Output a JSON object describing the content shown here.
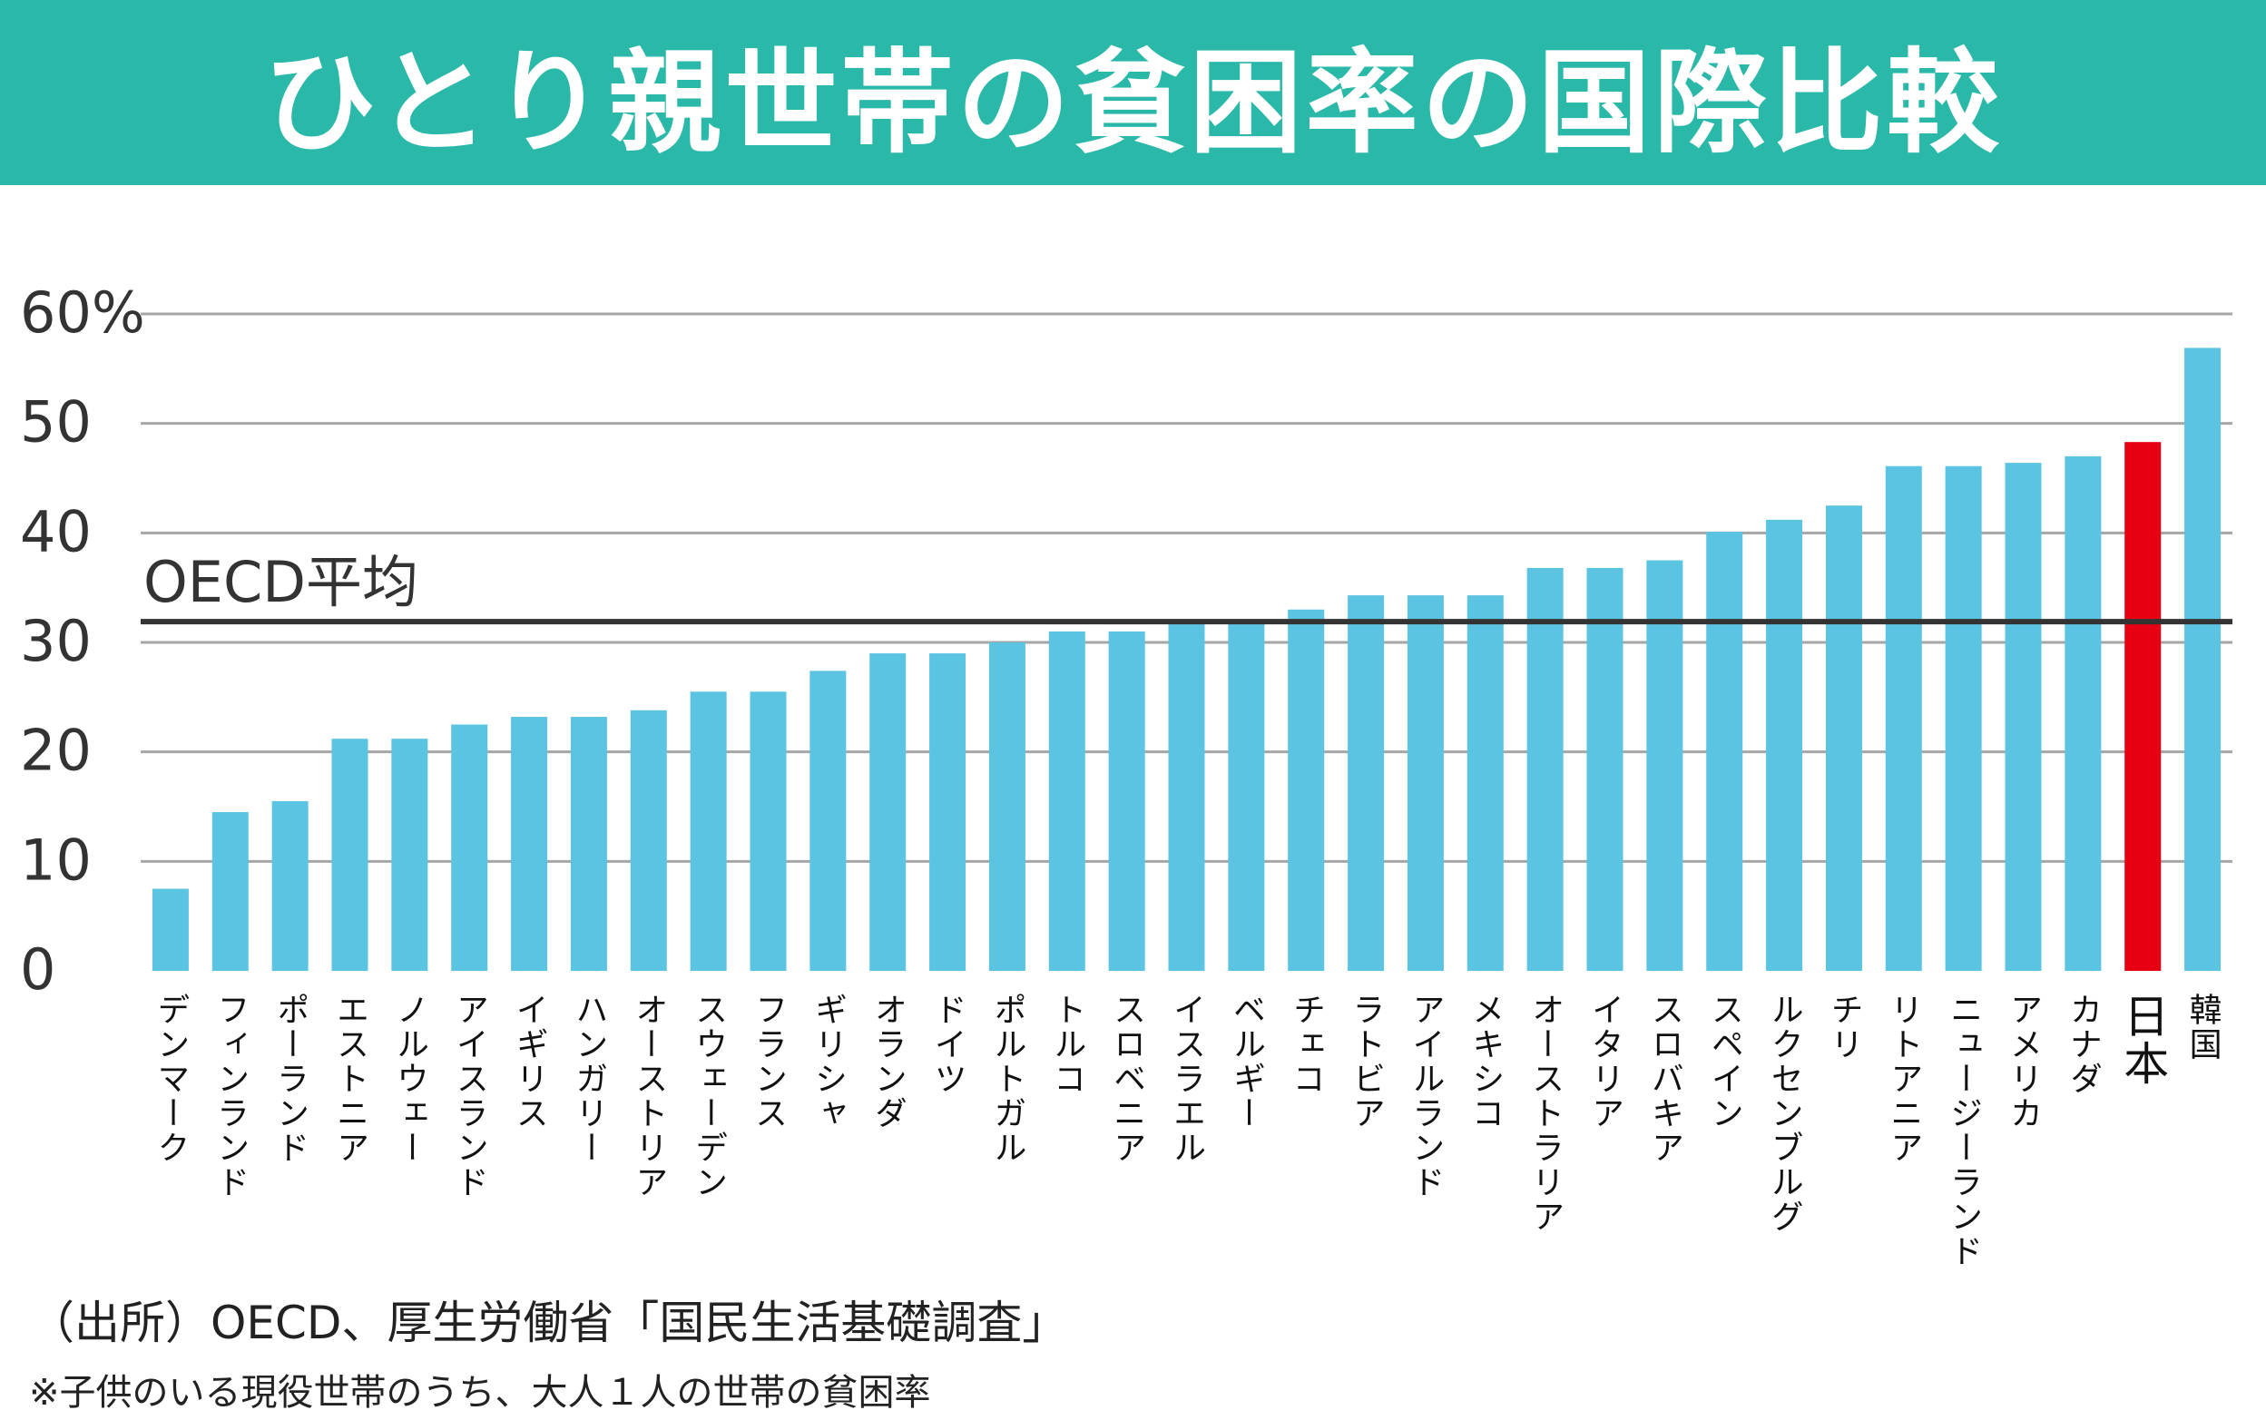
{
  "title": "ひとり親世帯の貧困率の国際比較",
  "source": "（出所）OECD、厚生労働省「国民生活基礎調査」",
  "note": "※子供のいる現役世帯のうち、大人１人の世帯の貧困率",
  "colors": {
    "banner": "#2ab8a8",
    "bar": "#5bc4e2",
    "highlight": "#e60012",
    "grid": "#a6a6a6",
    "avg_line": "#333333"
  },
  "chart_data": {
    "type": "bar",
    "title": "",
    "xlabel": "",
    "ylabel": "",
    "ylim": [
      0,
      60
    ],
    "yticks": [
      0,
      10,
      20,
      30,
      40,
      50,
      60
    ],
    "ytick_labels": [
      "0",
      "10",
      "20",
      "30",
      "40",
      "50",
      "60%"
    ],
    "grid": true,
    "highlight_category": "日本",
    "reference_line": {
      "label": "OECD平均",
      "value": 31.9
    },
    "categories": [
      "デンマーク",
      "フィンランド",
      "ポーランド",
      "エストニア",
      "ノルウェー",
      "アイスランド",
      "イギリス",
      "ハンガリー",
      "オーストリア",
      "スウェーデン",
      "フランス",
      "ギリシャ",
      "オランダ",
      "ドイツ",
      "ポルトガル",
      "トルコ",
      "スロベニア",
      "イスラエル",
      "ベルギー",
      "チェコ",
      "ラトビア",
      "アイルランド",
      "メキシコ",
      "オーストラリア",
      "イタリア",
      "スロバキア",
      "スペイン",
      "ルクセンブルグ",
      "チリ",
      "リトアニア",
      "ニュージーランド",
      "アメリカ",
      "カナダ",
      "日本",
      "韓国"
    ],
    "values": [
      7.5,
      14.5,
      15.5,
      21.2,
      21.2,
      22.5,
      23.2,
      23.2,
      23.8,
      25.5,
      25.5,
      27.4,
      29.0,
      29.0,
      30.0,
      31.0,
      31.0,
      32.0,
      32.0,
      33.0,
      34.3,
      34.3,
      34.3,
      36.8,
      36.8,
      37.5,
      40.1,
      41.2,
      42.5,
      46.1,
      46.1,
      46.4,
      47.0,
      48.3,
      56.9
    ]
  }
}
